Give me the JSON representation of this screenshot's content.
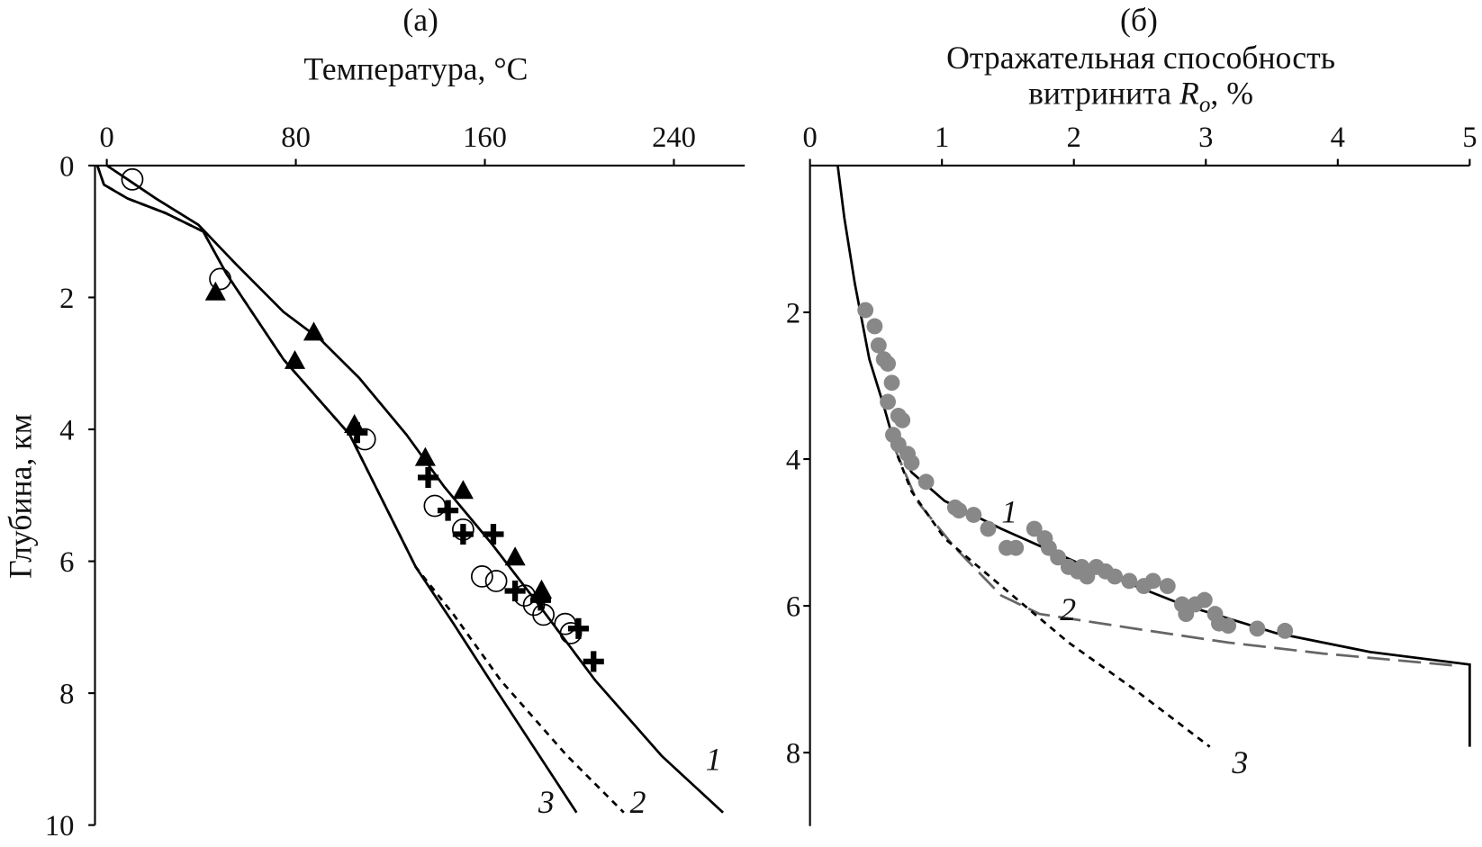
{
  "chart_data": [
    {
      "type": "line",
      "title": "(а)",
      "x_label": "Температура, °C",
      "y_label": "Глубина, км",
      "xlim": [
        -5,
        270
      ],
      "xticks": [
        0,
        80,
        160,
        240
      ],
      "ylim": [
        0,
        10
      ],
      "yticks": [
        0,
        2,
        4,
        6,
        8,
        10
      ],
      "series": [
        {
          "name": "1",
          "color": "#000000",
          "dash": "solid",
          "x": [
            0,
            8.8,
            20.8,
            38.8,
            54.8,
            74.8,
            90.8,
            106.8,
            126.8,
            142.8,
            162.8,
            182.8,
            206.8,
            234.8,
            260.8
          ],
          "values": [
            0,
            0.21,
            0.5,
            0.9,
            1.5,
            2.22,
            2.65,
            3.22,
            4.08,
            4.87,
            5.73,
            6.66,
            7.81,
            8.95,
            9.81
          ]
        },
        {
          "name": "2",
          "color": "#000000",
          "dash": "short",
          "x": [
            -4,
            -1.2,
            8.8,
            24.8,
            40.8,
            50.8,
            74.8,
            102.8,
            118.8,
            130.8,
            146.8,
            166.8,
            194.8,
            218.8
          ],
          "values": [
            0,
            0.29,
            0.5,
            0.72,
            1.0,
            1.65,
            2.94,
            4.08,
            5.23,
            6.09,
            6.81,
            7.81,
            8.95,
            9.81
          ]
        },
        {
          "name": "3",
          "color": "#000000",
          "dash": "solid",
          "x": [
            -4,
            -1.2,
            8.8,
            24.8,
            40.8,
            50.8,
            74.8,
            102.8,
            118.8,
            130.8,
            146.8,
            164.8,
            198.8
          ],
          "values": [
            0,
            0.29,
            0.5,
            0.72,
            1.0,
            1.65,
            2.94,
            4.08,
            5.23,
            6.09,
            6.95,
            7.95,
            9.81
          ]
        },
        {
          "marker": "circle",
          "color": "#000000",
          "x": [
            10.8,
            48,
            109.2,
            138.8,
            150.8,
            158.8,
            164.8,
            176.8,
            180.8,
            184.8,
            194,
            196.4
          ],
          "values": [
            0.21,
            1.72,
            4.15,
            5.16,
            5.52,
            6.23,
            6.3,
            6.52,
            6.66,
            6.81,
            6.95,
            7.09
          ]
        },
        {
          "marker": "triangle",
          "color": "#000000",
          "x": [
            46,
            87.6,
            79.6,
            104.8,
            134.8,
            150.8,
            172.8,
            184
          ],
          "values": [
            1.93,
            2.54,
            2.97,
            3.94,
            4.44,
            4.94,
            5.95,
            6.45
          ]
        },
        {
          "marker": "plus",
          "color": "#000000",
          "x": [
            106,
            136,
            144.4,
            150.8,
            163.6,
            172.8,
            183.6,
            199.6,
            206
          ],
          "values": [
            4.05,
            4.73,
            5.23,
            5.59,
            5.59,
            6.45,
            6.59,
            7.02,
            7.52
          ]
        }
      ]
    },
    {
      "type": "line",
      "title": "(б)",
      "x_label": {
        "line1": "Отражательная способность",
        "line2": "витринита ",
        "symbol": "R",
        "subscript": "o",
        "unit": ", %"
      },
      "xlim": [
        0,
        5
      ],
      "xticks": [
        0,
        1,
        2,
        3,
        4,
        5
      ],
      "ylim": [
        0,
        9
      ],
      "yticks": [
        2,
        4,
        6,
        8
      ],
      "series": [
        {
          "name": "1",
          "color": "#000000",
          "dash": "solid",
          "x": [
            0.21,
            0.26,
            0.34,
            0.45,
            0.56,
            0.63,
            0.77,
            1.02,
            1.45,
            2.1,
            2.82,
            3.53,
            4.25,
            5,
            5
          ],
          "values": [
            0,
            0.71,
            1.61,
            2.64,
            3.28,
            3.73,
            4.18,
            4.57,
            4.95,
            5.47,
            5.98,
            6.37,
            6.63,
            6.8,
            7.92
          ]
        },
        {
          "name": "2",
          "color": "#666666",
          "dash": "long",
          "x": [
            0.63,
            0.81,
            1.1,
            1.45,
            1.74,
            2.46,
            3.17,
            3.89,
            4.93
          ],
          "values": [
            3.8,
            4.57,
            5.21,
            5.86,
            6.11,
            6.31,
            6.5,
            6.65,
            6.82
          ]
        },
        {
          "name": "3",
          "color": "#000000",
          "dash": "short",
          "x": [
            0.63,
            0.77,
            1.02,
            1.45,
            1.96,
            2.46,
            3.03
          ],
          "values": [
            3.8,
            4.44,
            5.08,
            5.73,
            6.5,
            7.14,
            7.92
          ]
        },
        {
          "marker": "dot",
          "color": "#888888",
          "x": [
            0.42,
            0.49,
            0.52,
            0.56,
            0.59,
            0.62,
            0.59,
            0.67,
            0.7,
            0.63,
            0.67,
            0.74,
            0.77,
            0.88,
            1.1,
            1.13,
            1.24,
            1.35,
            1.49,
            1.56,
            1.7,
            1.78,
            1.81,
            1.88,
            1.96,
            2.03,
            2.06,
            2.1,
            2.17,
            2.24,
            2.31,
            2.42,
            2.53,
            2.6,
            2.71,
            2.82,
            2.85,
            2.92,
            2.99,
            3.07,
            3.1,
            3.17,
            3.39,
            3.6
          ],
          "values": [
            1.97,
            2.19,
            2.45,
            2.64,
            2.7,
            2.96,
            3.22,
            3.41,
            3.47,
            3.67,
            3.8,
            3.93,
            4.05,
            4.31,
            4.66,
            4.7,
            4.76,
            4.95,
            5.21,
            5.21,
            4.95,
            5.08,
            5.21,
            5.34,
            5.47,
            5.53,
            5.47,
            5.6,
            5.47,
            5.53,
            5.6,
            5.66,
            5.73,
            5.66,
            5.73,
            5.98,
            6.11,
            5.98,
            5.92,
            6.11,
            6.24,
            6.27,
            6.31,
            6.34
          ]
        }
      ]
    }
  ]
}
